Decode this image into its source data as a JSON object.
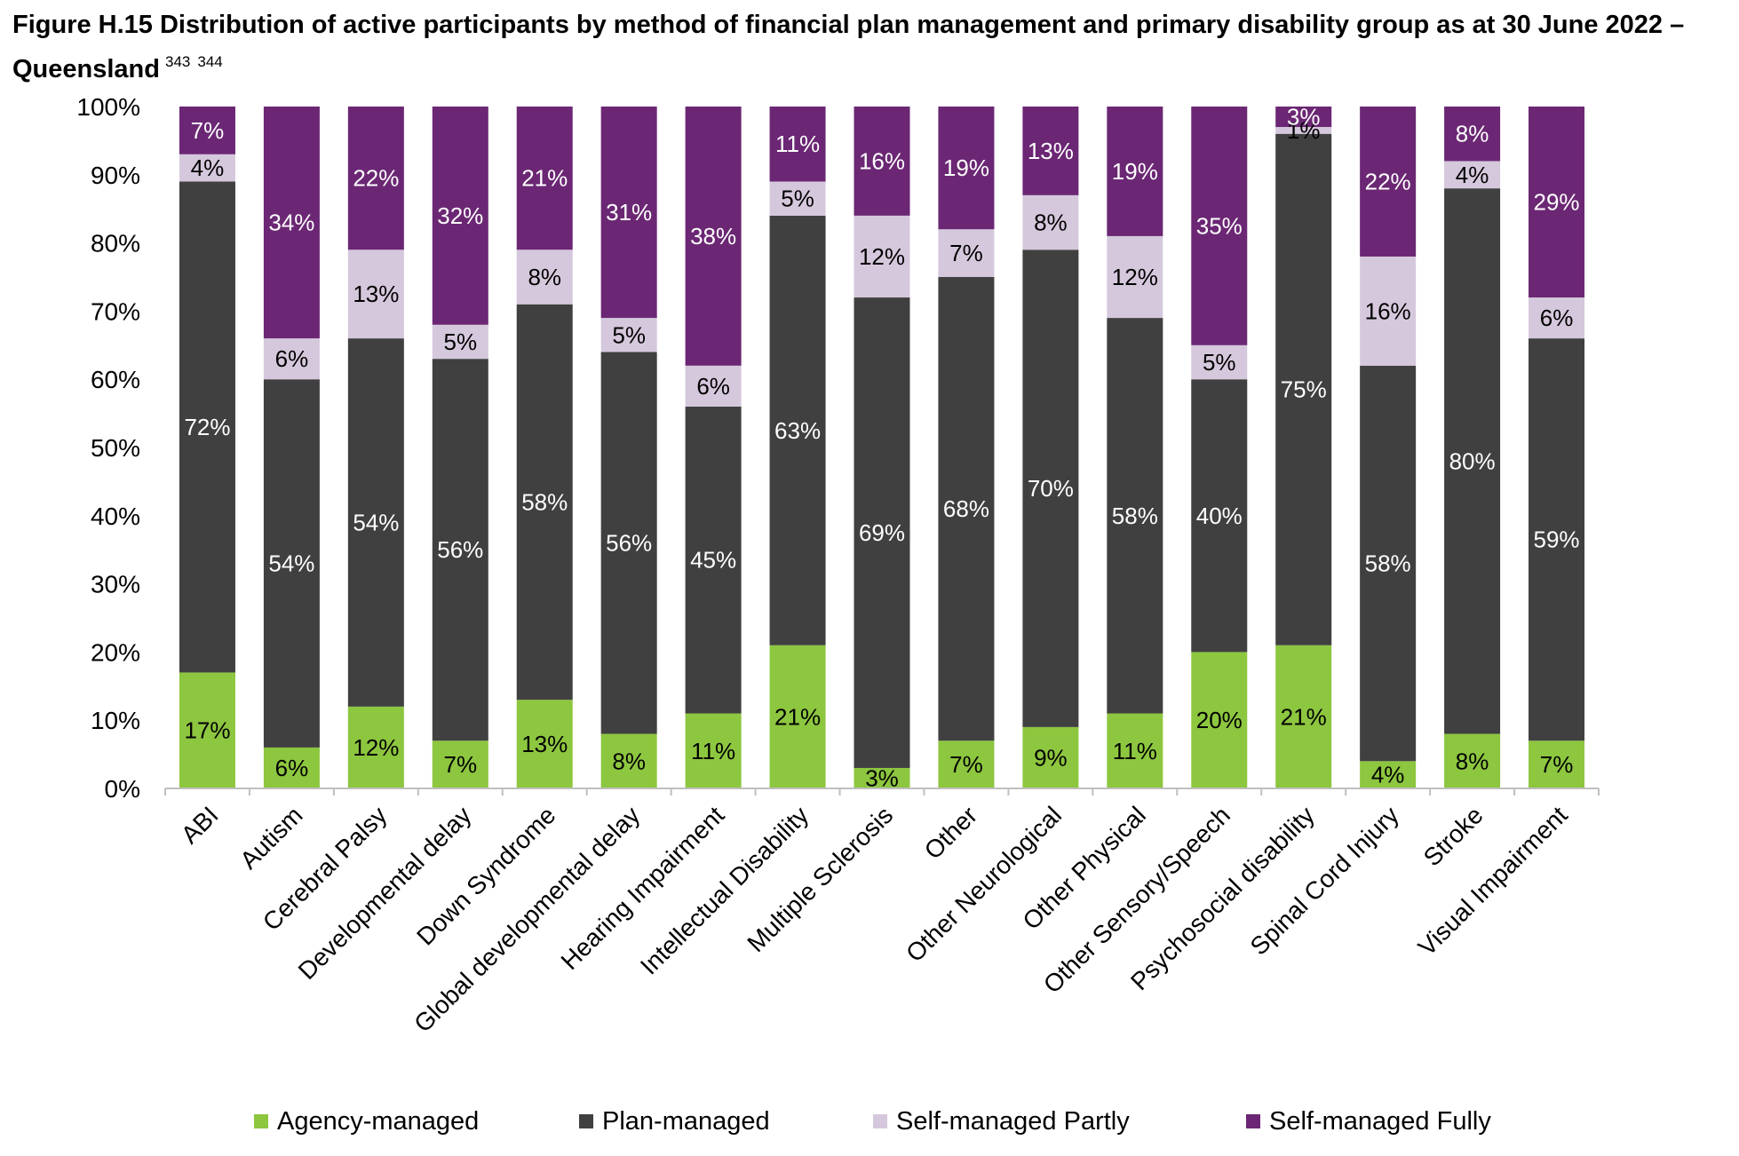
{
  "title": {
    "text": "Figure H.15 Distribution of active participants by method of financial plan management and primary disability group as at 30 June 2022 – Queensland",
    "footnotes": [
      "343",
      "344"
    ]
  },
  "chart_data": {
    "type": "bar",
    "stacked": true,
    "ylim": [
      0,
      100
    ],
    "yticks": [
      "0%",
      "10%",
      "20%",
      "30%",
      "40%",
      "50%",
      "60%",
      "70%",
      "80%",
      "90%",
      "100%"
    ],
    "legend_position": "bottom",
    "grid": false,
    "categories": [
      "ABI",
      "Autism",
      "Cerebral Palsy",
      "Developmental delay",
      "Down Syndrome",
      "Global developmental delay",
      "Hearing Impairment",
      "Intellectual Disability",
      "Multiple Sclerosis",
      "Other",
      "Other Neurological",
      "Other Physical",
      "Other Sensory/Speech",
      "Psychosocial disability",
      "Spinal Cord Injury",
      "Stroke",
      "Visual Impairment"
    ],
    "series": [
      {
        "name": "Agency-managed",
        "color": "#8dc63f",
        "label_color": "#000000",
        "values": [
          17,
          6,
          12,
          7,
          13,
          8,
          11,
          21,
          3,
          7,
          9,
          11,
          20,
          21,
          4,
          8,
          7
        ],
        "labels": [
          "17%",
          "6%",
          "12%",
          "7%",
          "13%",
          "8%",
          "11%",
          "21%",
          "3%",
          "7%",
          "9%",
          "11%",
          "20%",
          "21%",
          "4%",
          "8%",
          "7%"
        ]
      },
      {
        "name": "Plan-managed",
        "color": "#404040",
        "label_color": "#ffffff",
        "values": [
          72,
          54,
          54,
          56,
          58,
          56,
          45,
          63,
          69,
          68,
          70,
          58,
          40,
          75,
          58,
          80,
          59
        ],
        "labels": [
          "72%",
          "54%",
          "54%",
          "56%",
          "58%",
          "56%",
          "45%",
          "63%",
          "69%",
          "68%",
          "70%",
          "58%",
          "40%",
          "75%",
          "58%",
          "80%",
          "59%"
        ]
      },
      {
        "name": "Self-managed Partly",
        "color": "#d5c8dc",
        "label_color": "#000000",
        "values": [
          4,
          6,
          13,
          5,
          8,
          5,
          6,
          5,
          12,
          7,
          8,
          12,
          5,
          1,
          16,
          4,
          6
        ],
        "labels": [
          "4%",
          "6%",
          "13%",
          "5%",
          "8%",
          "5%",
          "6%",
          "5%",
          "12%",
          "7%",
          "8%",
          "12%",
          "5%",
          "1%",
          "16%",
          "4%",
          "6%"
        ]
      },
      {
        "name": "Self-managed Fully",
        "color": "#6b2774",
        "label_color": "#ffffff",
        "values": [
          7,
          34,
          22,
          32,
          21,
          31,
          38,
          11,
          16,
          19,
          13,
          19,
          35,
          3,
          22,
          8,
          29
        ],
        "labels": [
          "7%",
          "34%",
          "22%",
          "32%",
          "21%",
          "31%",
          "38%",
          "11%",
          "16%",
          "19%",
          "13%",
          "19%",
          "35%",
          "3%",
          "22%",
          "8%",
          "29%"
        ]
      }
    ]
  }
}
